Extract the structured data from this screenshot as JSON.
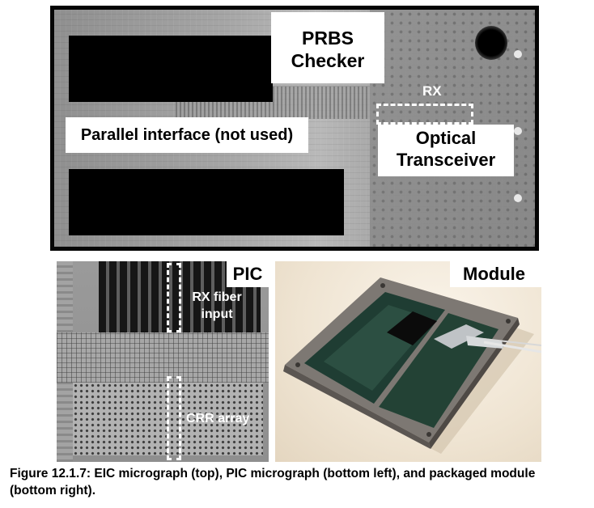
{
  "eic": {
    "labels": {
      "prbs_line1": "PRBS",
      "prbs_line2": "Checker",
      "parallel": "Parallel interface (not used)",
      "optical_line1": "Optical",
      "optical_line2": "Transceiver",
      "rx": "RX"
    }
  },
  "pic": {
    "title": "PIC",
    "rx_fiber_line1": "RX fiber",
    "rx_fiber_line2": "input",
    "crr_array": "CRR array"
  },
  "module": {
    "title": "Module"
  },
  "caption": {
    "text": "Figure 12.1.7: EIC micrograph (top), PIC micrograph (bottom left), and packaged module (bottom right)."
  }
}
